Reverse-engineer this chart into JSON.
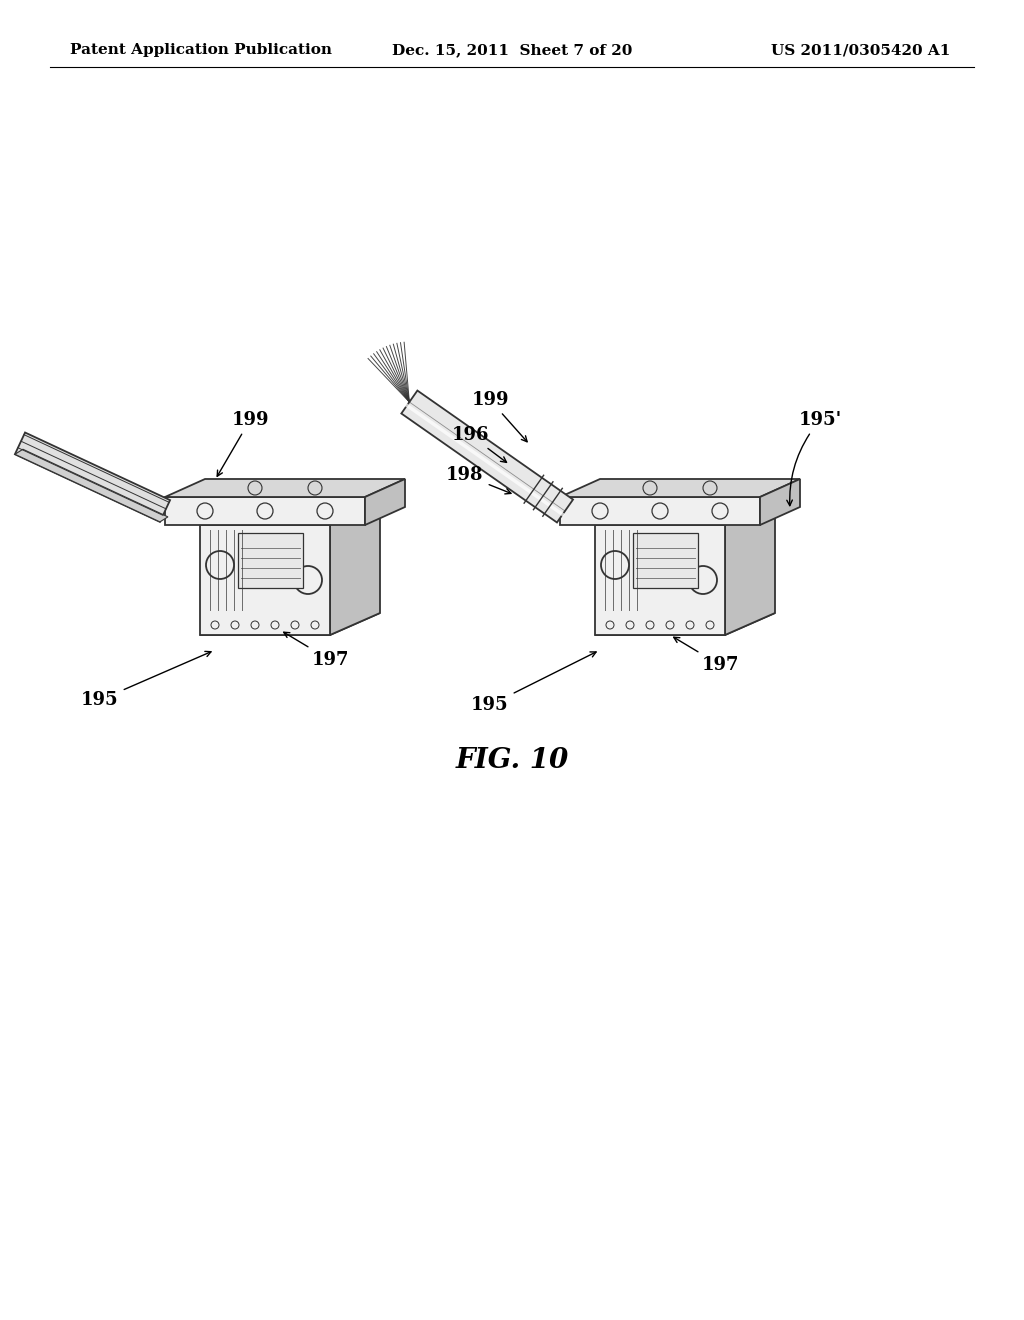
{
  "background_color": "#ffffff",
  "header_left": "Patent Application Publication",
  "header_center": "Dec. 15, 2011  Sheet 7 of 20",
  "header_right": "US 2011/0305420 A1",
  "header_fontsize": 11,
  "figure_label": "FIG. 10",
  "figure_label_fontsize": 20
}
